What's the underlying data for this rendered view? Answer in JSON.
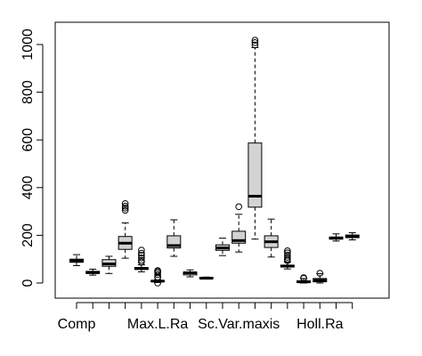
{
  "chart_data": {
    "type": "boxplot",
    "title": "",
    "xlabel": "",
    "ylabel": "",
    "ylim": [
      0,
      1000
    ],
    "y_ticks": [
      0,
      200,
      400,
      600,
      800,
      1000
    ],
    "x_tick_labels": [
      "Comp",
      "Max.L.Ra",
      "Sc.Var.maxis",
      "Holl.Ra"
    ],
    "x_tick_label_positions": [
      1,
      6,
      11,
      16
    ],
    "box_fill": "#d3d3d3",
    "series": [
      {
        "index": 1,
        "whisker_low": 73,
        "q1": 87,
        "median": 93,
        "q3": 100,
        "whisker_high": 119,
        "outliers": []
      },
      {
        "index": 2,
        "whisker_low": 33,
        "q1": 40,
        "median": 44,
        "q3": 49,
        "whisker_high": 58,
        "outliers": []
      },
      {
        "index": 3,
        "whisker_low": 40,
        "q1": 70,
        "median": 80,
        "q3": 98,
        "whisker_high": 112,
        "outliers": []
      },
      {
        "index": 4,
        "whisker_low": 104,
        "q1": 141,
        "median": 167,
        "q3": 195,
        "whisker_high": 252,
        "outliers": [
          305,
          314,
          322,
          333
        ]
      },
      {
        "index": 5,
        "whisker_low": 47,
        "q1": 57,
        "median": 61,
        "q3": 65,
        "whisker_high": 76,
        "outliers": [
          88,
          95,
          105,
          116,
          125,
          138
        ]
      },
      {
        "index": 6,
        "whisker_low": 2,
        "q1": 7,
        "median": 8,
        "q3": 10,
        "whisker_high": 13,
        "outliers": [
          0,
          22,
          25,
          35,
          43,
          49,
          52
        ]
      },
      {
        "index": 7,
        "whisker_low": 112,
        "q1": 147,
        "median": 157,
        "q3": 198,
        "whisker_high": 265,
        "outliers": []
      },
      {
        "index": 8,
        "whisker_low": 26,
        "q1": 34,
        "median": 43,
        "q3": 46,
        "whisker_high": 55,
        "outliers": []
      },
      {
        "index": 9,
        "whisker_low": 17,
        "q1": 19,
        "median": 20,
        "q3": 23,
        "whisker_high": 25,
        "outliers": []
      },
      {
        "index": 10,
        "whisker_low": 115,
        "q1": 137,
        "median": 147,
        "q3": 160,
        "whisker_high": 188,
        "outliers": []
      },
      {
        "index": 11,
        "whisker_low": 130,
        "q1": 167,
        "median": 178,
        "q3": 217,
        "whisker_high": 288,
        "outliers": [
          320
        ]
      },
      {
        "index": 12,
        "whisker_low": 184,
        "q1": 318,
        "median": 364,
        "q3": 587,
        "whisker_high": 987,
        "outliers": [
          998,
          1008,
          1018
        ]
      },
      {
        "index": 13,
        "whisker_low": 109,
        "q1": 149,
        "median": 173,
        "q3": 198,
        "whisker_high": 268,
        "outliers": []
      },
      {
        "index": 14,
        "whisker_low": 59,
        "q1": 67,
        "median": 71,
        "q3": 75,
        "whisker_high": 87,
        "outliers": [
          94,
          100,
          108,
          117,
          126,
          135
        ]
      },
      {
        "index": 15,
        "whisker_low": 0,
        "q1": 2,
        "median": 5,
        "q3": 9,
        "whisker_high": 19,
        "outliers": [
          20,
          22
        ]
      },
      {
        "index": 16,
        "whisker_low": 0,
        "q1": 5,
        "median": 11,
        "q3": 19,
        "whisker_high": 39,
        "outliers": [
          41
        ]
      },
      {
        "index": 17,
        "whisker_low": 176,
        "q1": 184,
        "median": 188,
        "q3": 193,
        "whisker_high": 206,
        "outliers": []
      },
      {
        "index": 18,
        "whisker_low": 181,
        "q1": 190,
        "median": 197,
        "q3": 201,
        "whisker_high": 211,
        "outliers": []
      }
    ]
  }
}
